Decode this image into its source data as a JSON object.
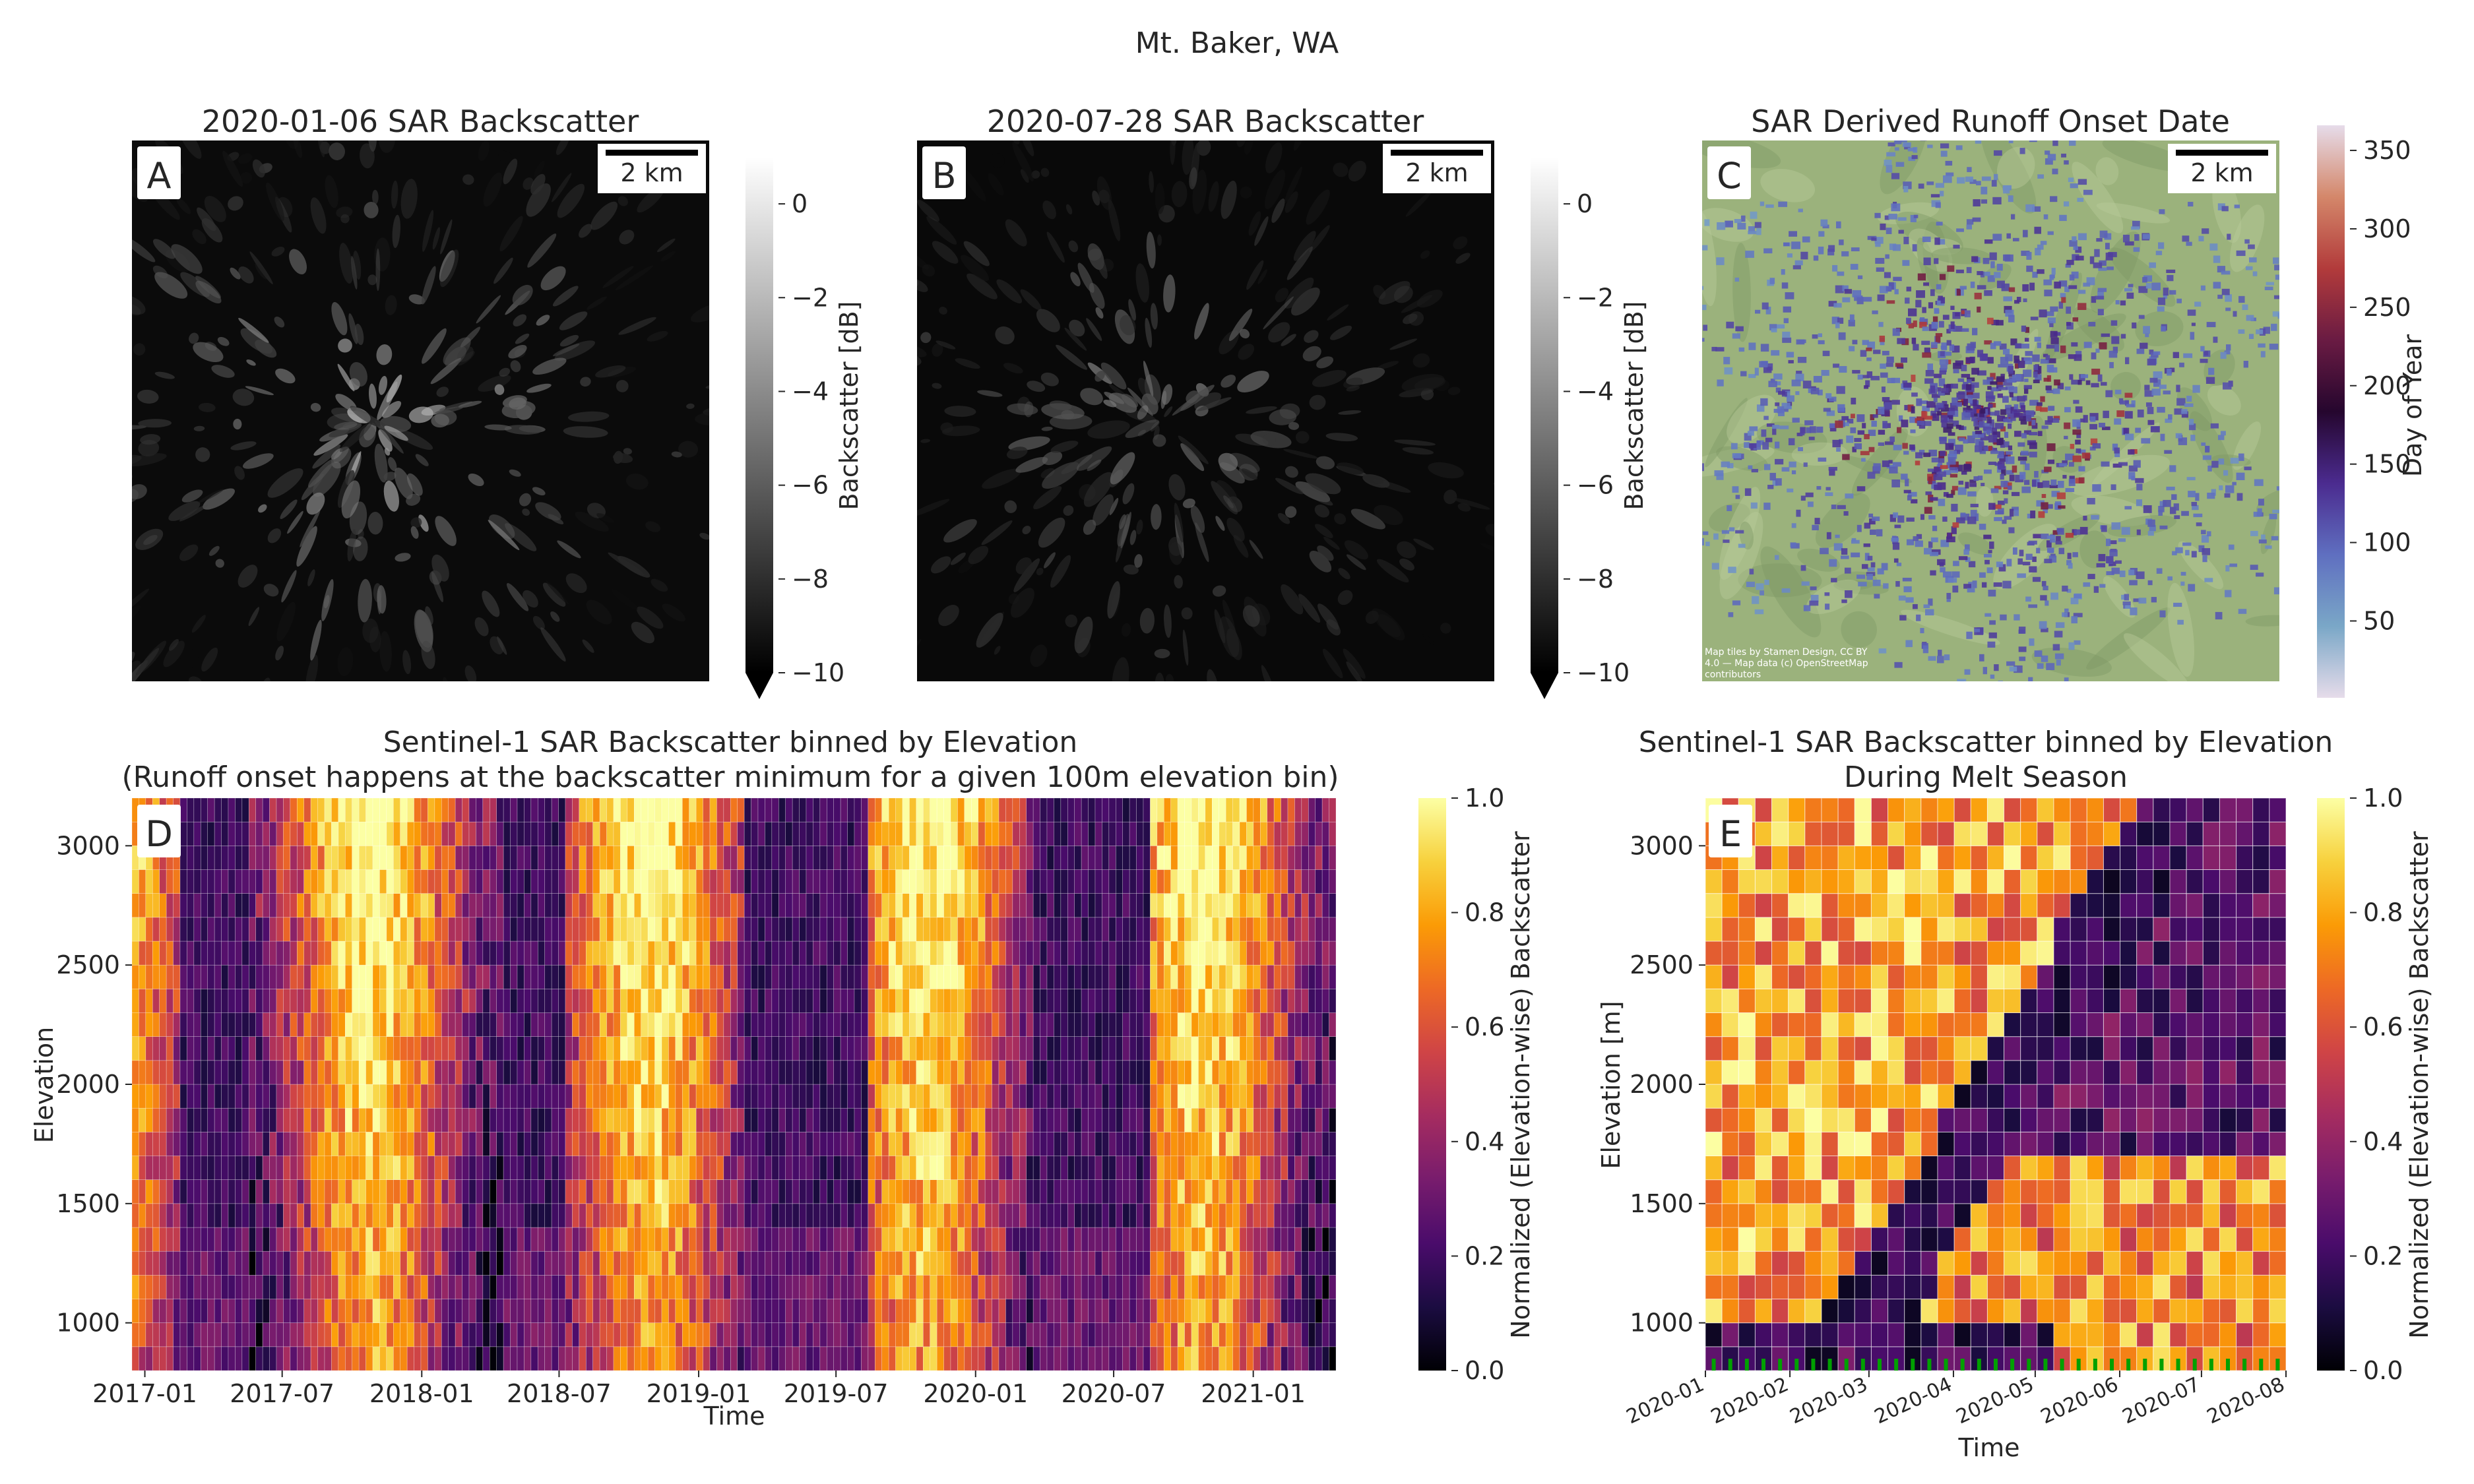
{
  "figure": {
    "suptitle": "Mt. Baker, WA"
  },
  "colors": {
    "inferno": [
      "#000004",
      "#1b0c41",
      "#4a0c6b",
      "#781c6d",
      "#a52c60",
      "#cf4446",
      "#ed6925",
      "#fb9b06",
      "#f7d13d",
      "#fcffa4"
    ],
    "doy": [
      "#e6dcea",
      "#7aa7c7",
      "#5f6fc0",
      "#4b2b8f",
      "#25062e",
      "#6a1b43",
      "#b23b3b",
      "#d4876a",
      "#e6dcea"
    ],
    "terrain_green": "#9bb27c",
    "gray_low": "#000000",
    "gray_high": "#ffffff",
    "onset_marker": "#00a000"
  },
  "panels": {
    "A": {
      "letter": "A",
      "title": "2020-01-06 SAR Backscatter",
      "scalebar": "2 km",
      "colorbar": {
        "label": "Backscatter [dB]",
        "ticks": [
          "0",
          "−2",
          "−4",
          "−6",
          "−8",
          "−10"
        ],
        "vmin": -10,
        "vmax": 1,
        "extend": "min"
      }
    },
    "B": {
      "letter": "B",
      "title": "2020-07-28 SAR Backscatter",
      "scalebar": "2 km",
      "colorbar": {
        "label": "Backscatter [dB]",
        "ticks": [
          "0",
          "−2",
          "−4",
          "−6",
          "−8",
          "−10"
        ],
        "vmin": -10,
        "vmax": 1,
        "extend": "min"
      }
    },
    "C": {
      "letter": "C",
      "title": "SAR Derived Runoff Onset Date",
      "scalebar": "2 km",
      "attribution": [
        "Map tiles by Stamen Design, CC BY",
        "4.0 — Map data (c) OpenStreetMap",
        "contributors"
      ],
      "colorbar": {
        "label": "Day of Year",
        "ticks": [
          "350",
          "300",
          "250",
          "200",
          "150",
          "100",
          "50"
        ],
        "vmin": 1,
        "vmax": 366
      }
    },
    "D": {
      "letter": "D",
      "title": [
        "Sentinel-1 SAR Backscatter binned by Elevation",
        "(Runoff onset happens at the backscatter minimum for a given 100m elevation bin)"
      ],
      "ylabel": "Elevation",
      "xlabel": "Time",
      "colorbar": {
        "label": "Normalized (Elevation-wise) Backscatter",
        "ticks": [
          "1.0",
          "0.8",
          "0.6",
          "0.4",
          "0.2",
          "0.0"
        ]
      }
    },
    "E": {
      "letter": "E",
      "title": [
        "Sentinel-1 SAR Backscatter binned by Elevation",
        "During Melt Season"
      ],
      "ylabel": "Elevation [m]",
      "xlabel": "Time",
      "colorbar": {
        "label": "Normalized (Elevation-wise) Backscatter",
        "ticks": [
          "1.0",
          "0.8",
          "0.6",
          "0.4",
          "0.2",
          "0.0"
        ]
      }
    }
  },
  "chart_data": [
    {
      "type": "heatmap",
      "panel": "D",
      "title": "Sentinel-1 SAR Backscatter binned by Elevation (Runoff onset happens at the backscatter minimum for a given 100m elevation bin)",
      "xlabel": "Time",
      "ylabel": "Elevation",
      "x_ticks": [
        "2017-01",
        "2017-07",
        "2018-01",
        "2018-07",
        "2019-01",
        "2019-07",
        "2020-01",
        "2020-07",
        "2021-01"
      ],
      "x_start": "2016-12-15",
      "x_end": "2021-04-20",
      "y_ticks": [
        1000,
        1500,
        2000,
        2500,
        3000
      ],
      "ylim": [
        800,
        3200
      ],
      "elevation_bins": [
        850,
        950,
        1050,
        1150,
        1250,
        1350,
        1450,
        1550,
        1650,
        1750,
        1850,
        1950,
        2050,
        2150,
        2250,
        2350,
        2450,
        2550,
        2650,
        2750,
        2850,
        2950,
        3050,
        3150
      ],
      "colorbar_range": [
        0.0,
        1.0
      ],
      "n_time_columns": 175,
      "low_backscatter_periods": [
        [
          "2017-02-20",
          "2017-05-15"
        ],
        [
          "2018-04-20",
          "2018-07-10"
        ],
        [
          "2019-03-01",
          "2019-08-10"
        ],
        [
          "2020-03-15",
          "2020-08-20"
        ]
      ]
    },
    {
      "type": "heatmap",
      "panel": "E",
      "title": "Sentinel-1 SAR Backscatter binned by Elevation During Melt Season",
      "xlabel": "Time",
      "ylabel": "Elevation [m]",
      "x_ticks": [
        "2020-01",
        "2020-02",
        "2020-03",
        "2020-04",
        "2020-05",
        "2020-06",
        "2020-07",
        "2020-08"
      ],
      "x_start": "2020-01-01",
      "x_end": "2020-08-01",
      "y_ticks": [
        1000,
        1500,
        2000,
        2500,
        3000
      ],
      "ylim": [
        800,
        3200
      ],
      "elevation_bins": [
        850,
        950,
        1050,
        1150,
        1250,
        1350,
        1450,
        1550,
        1650,
        1750,
        1850,
        1950,
        2050,
        2150,
        2250,
        2350,
        2450,
        2550,
        2650,
        2750,
        2850,
        2950,
        3050,
        3150
      ],
      "colorbar_range": [
        0.0,
        1.0
      ],
      "n_time_columns": 35,
      "runoff_onset_markers": 35
    }
  ]
}
